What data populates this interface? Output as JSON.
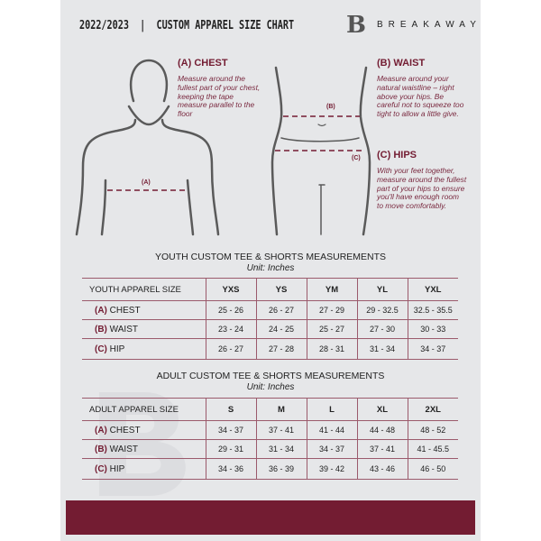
{
  "header": {
    "title": "2022/2023  |  CUSTOM APPAREL SIZE CHART",
    "brand": "BREAKAWAY",
    "logo_letter": "B"
  },
  "colors": {
    "accent": "#731c32",
    "panel": "#e6e7e9"
  },
  "guide": {
    "chest": {
      "title": "(A) CHEST",
      "text": "Measure around the fullest part of your chest, keeping the tape measure parallel to the floor",
      "marker": "(A)"
    },
    "waist": {
      "title": "(B) WAIST",
      "text": "Measure around your natural waistline – right above your hips. Be careful not to squeeze too tight to allow a little give.",
      "marker": "(B)"
    },
    "hips": {
      "title": "(C) HIPS",
      "text": "With your feet together, measure around the fullest part of your hips to ensure you'll have enough room to move comfortably.",
      "marker": "(C)"
    }
  },
  "youth": {
    "title": "YOUTH CUSTOM TEE & SHORTS MEASUREMENTS",
    "unit": "Unit: Inches",
    "header": "YOUTH APPAREL SIZE",
    "sizes": [
      "YXS",
      "YS",
      "YM",
      "YL",
      "YXL"
    ],
    "rows": [
      {
        "letter": "(A)",
        "label": "CHEST",
        "values": [
          "25 - 26",
          "26 - 27",
          "27 - 29",
          "29 - 32.5",
          "32.5 - 35.5"
        ]
      },
      {
        "letter": "(B)",
        "label": "WAIST",
        "values": [
          "23 - 24",
          "24 - 25",
          "25 - 27",
          "27 - 30",
          "30 - 33"
        ]
      },
      {
        "letter": "(C)",
        "label": "HIP",
        "values": [
          "26 - 27",
          "27 - 28",
          "28 - 31",
          "31 - 34",
          "34 - 37"
        ]
      }
    ]
  },
  "adult": {
    "title": "ADULT CUSTOM TEE & SHORTS MEASUREMENTS",
    "unit": "Unit: Inches",
    "header": "ADULT APPAREL SIZE",
    "sizes": [
      "S",
      "M",
      "L",
      "XL",
      "2XL"
    ],
    "rows": [
      {
        "letter": "(A)",
        "label": "CHEST",
        "values": [
          "34 - 37",
          "37 - 41",
          "41 - 44",
          "44 - 48",
          "48 - 52"
        ]
      },
      {
        "letter": "(B)",
        "label": "WAIST",
        "values": [
          "29 - 31",
          "31 - 34",
          "34 - 37",
          "37 - 41",
          "41 - 45.5"
        ]
      },
      {
        "letter": "(C)",
        "label": "HIP",
        "values": [
          "34 - 36",
          "36 - 39",
          "39 - 42",
          "43 - 46",
          "46 - 50"
        ]
      }
    ]
  }
}
